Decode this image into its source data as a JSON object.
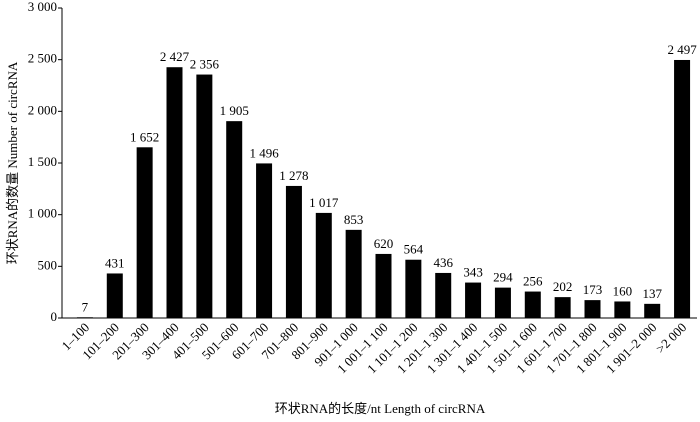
{
  "chart_data": {
    "type": "bar",
    "x_label": "环状RNA的长度/nt  Length of circRNA",
    "y_label": "环状RNA的数量  Number of circRNA",
    "categories": [
      "1–100",
      "101–200",
      "201–300",
      "301–400",
      "401–500",
      "501–600",
      "601–700",
      "701–800",
      "801–900",
      "901–1 000",
      "1 001–1 100",
      "1 101–1 200",
      "1 201–1 300",
      "1 301–1 400",
      "1 401–1 500",
      "1 501–1 600",
      "1 601–1 700",
      "1 701–1 800",
      "1 801–1 900",
      "1 901–2 000",
      ">2 000"
    ],
    "values": [
      7,
      431,
      1652,
      2427,
      2356,
      1905,
      1496,
      1278,
      1017,
      853,
      620,
      564,
      436,
      343,
      294,
      256,
      202,
      173,
      160,
      137,
      2497
    ],
    "value_labels": [
      "7",
      "431",
      "1 652",
      "2 427",
      "2 356",
      "1 905",
      "1 496",
      "1 278",
      "1 017",
      "853",
      "620",
      "564",
      "436",
      "343",
      "294",
      "256",
      "202",
      "173",
      "160",
      "137",
      "2 497"
    ],
    "color": "#000000",
    "ylim": [
      0,
      3000
    ],
    "yticks": [
      0,
      500,
      {
        "value": 1000,
        "label": "1 000"
      },
      {
        "value": 1500,
        "label": "1 500"
      },
      {
        "value": 2000,
        "label": "2 000"
      },
      {
        "value": 2500,
        "label": "2 500"
      },
      {
        "value": 3000,
        "label": "3 000"
      }
    ],
    "grid": false
  }
}
